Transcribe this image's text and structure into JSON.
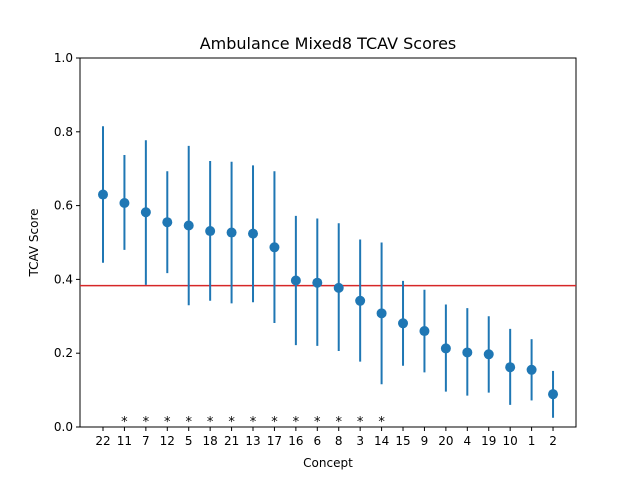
{
  "chart_data": {
    "type": "scatter",
    "title": "Ambulance Mixed8 TCAV Scores",
    "xlabel": "Concept",
    "ylabel": "TCAV Score",
    "ylim": [
      0,
      1.0
    ],
    "yticks": [
      "0.0",
      "0.2",
      "0.4",
      "0.6",
      "0.8",
      "1.0"
    ],
    "categories": [
      "22",
      "11",
      "7",
      "12",
      "5",
      "18",
      "21",
      "13",
      "17",
      "16",
      "6",
      "8",
      "3",
      "14",
      "15",
      "9",
      "20",
      "4",
      "19",
      "10",
      "1",
      "2"
    ],
    "values": [
      0.63,
      0.607,
      0.582,
      0.555,
      0.546,
      0.531,
      0.527,
      0.524,
      0.487,
      0.397,
      0.391,
      0.377,
      0.342,
      0.308,
      0.281,
      0.26,
      0.213,
      0.202,
      0.197,
      0.162,
      0.155,
      0.089
    ],
    "error_low": [
      0.445,
      0.48,
      0.385,
      0.417,
      0.33,
      0.342,
      0.335,
      0.338,
      0.282,
      0.222,
      0.22,
      0.206,
      0.177,
      0.116,
      0.166,
      0.148,
      0.096,
      0.085,
      0.093,
      0.06,
      0.072,
      0.025
    ],
    "error_high": [
      0.815,
      0.737,
      0.777,
      0.693,
      0.762,
      0.721,
      0.719,
      0.709,
      0.693,
      0.572,
      0.565,
      0.552,
      0.508,
      0.5,
      0.396,
      0.372,
      0.332,
      0.322,
      0.3,
      0.266,
      0.238,
      0.152
    ],
    "significance": [
      "",
      "*",
      "*",
      "*",
      "*",
      "*",
      "*",
      "*",
      "*",
      "*",
      "*",
      "*",
      "*",
      "*",
      "",
      "",
      "",
      "",
      "",
      "",
      "",
      ""
    ],
    "baseline": 0.383,
    "colors": {
      "points": "#1f77b4",
      "baseline": "#d62728"
    },
    "grid": false
  }
}
